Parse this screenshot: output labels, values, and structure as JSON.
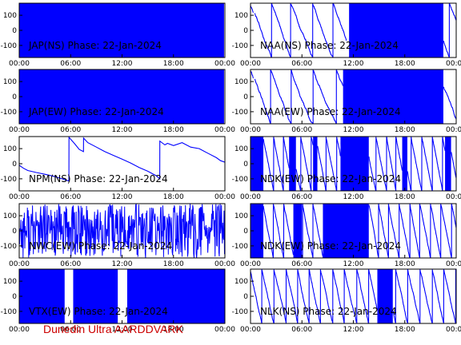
{
  "figure": {
    "footer": "Dunedin Ultra AARDDVARK",
    "footer_color": "#cc0000",
    "trace_color": "#0000ff"
  },
  "chart_data": [
    {
      "type": "line",
      "title": "JAP(NS) Phase: 22-Jan-2024",
      "x_ticks": [
        "00:00",
        "06:00",
        "12:00",
        "18:00",
        "00:00"
      ],
      "y_ticks": [
        "100",
        "0",
        "-100"
      ],
      "ylim": [
        -180,
        180
      ],
      "xlim_hours": [
        0,
        24
      ],
      "style": "fill",
      "segments": [
        [
          0,
          23.9
        ]
      ]
    },
    {
      "type": "line",
      "title": "NAA(NS) Phase: 22-Jan-2024",
      "x_ticks": [
        "00:00",
        "06:00",
        "12:00",
        "18:00",
        "00:00"
      ],
      "y_ticks": [
        "100",
        "0",
        "-100"
      ],
      "ylim": [
        -180,
        180
      ],
      "xlim_hours": [
        0,
        24
      ],
      "style": "wrap",
      "slope_deg_per_hour": -150,
      "line_ranges": [
        [
          0,
          11.5
        ],
        [
          22.5,
          24
        ]
      ],
      "band_ranges": [
        [
          11.5,
          22.5
        ]
      ],
      "gaps": [
        [
          0.35,
          0.5
        ],
        [
          11.2,
          11.6
        ]
      ]
    },
    {
      "type": "line",
      "title": "JAP(EW) Phase: 22-Jan-2024",
      "x_ticks": [
        "00:00",
        "06:00",
        "12:00",
        "18:00",
        "00:00"
      ],
      "y_ticks": [
        "100",
        "0",
        "-100"
      ],
      "ylim": [
        -180,
        180
      ],
      "xlim_hours": [
        0,
        24
      ],
      "style": "fill",
      "segments": [
        [
          0,
          23.9
        ]
      ]
    },
    {
      "type": "line",
      "title": "NAA(EW) Phase: 22-Jan-2024",
      "x_ticks": [
        "00:00",
        "06:00",
        "12:00",
        "18:00",
        "00:00"
      ],
      "y_ticks": [
        "100",
        "0",
        "-100"
      ],
      "ylim": [
        -180,
        180
      ],
      "xlim_hours": [
        0,
        24
      ],
      "style": "wrap",
      "slope_deg_per_hour": -150,
      "line_ranges": [
        [
          0,
          10.8
        ],
        [
          22.5,
          24
        ]
      ],
      "band_ranges": [
        [
          10.8,
          22.5
        ]
      ],
      "gaps": [
        [
          0.35,
          0.5
        ]
      ]
    },
    {
      "type": "line",
      "title": "NPM(NS) Phase: 22-Jan-2024",
      "x_ticks": [
        "00:00",
        "06:00",
        "12:00",
        "18:00",
        "00:00"
      ],
      "y_ticks": [
        "100",
        "0",
        "-100"
      ],
      "ylim": [
        -180,
        180
      ],
      "xlim_hours": [
        0,
        24
      ],
      "style": "series",
      "points": [
        [
          0,
          -10
        ],
        [
          0.5,
          -30
        ],
        [
          1,
          -45
        ],
        [
          2,
          -58
        ],
        [
          3,
          -70
        ],
        [
          4,
          -83
        ],
        [
          5,
          -100
        ],
        [
          5.8,
          -115
        ],
        [
          5.81,
          175
        ],
        [
          6.5,
          130
        ],
        [
          7,
          95
        ],
        [
          7.5,
          80
        ],
        [
          7.51,
          170
        ],
        [
          8,
          140
        ],
        [
          9,
          110
        ],
        [
          10,
          80
        ],
        [
          11,
          55
        ],
        [
          12,
          30
        ],
        [
          13,
          5
        ],
        [
          14,
          -25
        ],
        [
          15,
          -50
        ],
        [
          16,
          -80
        ],
        [
          16.4,
          -100
        ],
        [
          16.41,
          150
        ],
        [
          17,
          125
        ],
        [
          17.3,
          135
        ],
        [
          18,
          120
        ],
        [
          19,
          140
        ],
        [
          20,
          110
        ],
        [
          21,
          100
        ],
        [
          22,
          70
        ],
        [
          23,
          40
        ],
        [
          23.5,
          20
        ],
        [
          24,
          10
        ]
      ]
    },
    {
      "type": "line",
      "title": "NDK(EW) Phase: 22-Jan-2024",
      "x_ticks": [
        "00:00",
        "06:00",
        "12:00",
        "18:00",
        "00:00"
      ],
      "y_ticks": [
        "100",
        "0",
        "-100"
      ],
      "ylim": [
        -180,
        180
      ],
      "xlim_hours": [
        0,
        24
      ],
      "style": "wrap",
      "slope_deg_per_hour": -300,
      "line_ranges": [
        [
          0,
          24
        ]
      ],
      "band_ranges": [
        [
          0,
          1.5
        ],
        [
          4.5,
          5.3
        ],
        [
          7.3,
          7.8
        ],
        [
          10.5,
          13.8
        ],
        [
          17.7,
          18.3
        ],
        [
          22.7,
          23.4
        ]
      ],
      "gaps": []
    },
    {
      "type": "line",
      "title": "NWC(EW) Phase: 22-Jan-2024",
      "x_ticks": [
        "00:00",
        "06:00",
        "12:00",
        "18:00",
        "00:00"
      ],
      "y_ticks": [
        "100",
        "0",
        "-100"
      ],
      "ylim": [
        -180,
        180
      ],
      "xlim_hours": [
        0,
        24
      ],
      "style": "noise",
      "segments": [
        [
          0,
          24
        ]
      ]
    },
    {
      "type": "line",
      "title": "NDK(EW) Phase: 22-Jan-2024",
      "x_ticks": [
        "00:00",
        "06:00",
        "12:00",
        "18:00",
        "00:00"
      ],
      "y_ticks": [
        "100",
        "0",
        "-100"
      ],
      "ylim": [
        -180,
        180
      ],
      "xlim_hours": [
        0,
        24
      ],
      "style": "wrap",
      "slope_deg_per_hour": -300,
      "line_ranges": [
        [
          0,
          24
        ]
      ],
      "band_ranges": [
        [
          0,
          1.5
        ],
        [
          5,
          6
        ],
        [
          8.5,
          13.8
        ]
      ],
      "gaps": []
    },
    {
      "type": "line",
      "title": "VTX(EW) Phase: 22-Jan-2024",
      "x_ticks": [
        "00:00",
        "06:00",
        "12:00",
        "18:00",
        "00:00"
      ],
      "y_ticks": [
        "100",
        "0",
        "-100"
      ],
      "ylim": [
        -180,
        180
      ],
      "xlim_hours": [
        0,
        24
      ],
      "style": "fill",
      "segments": [
        [
          0,
          5.3
        ],
        [
          6.3,
          11.5
        ],
        [
          12.6,
          24
        ]
      ]
    },
    {
      "type": "line",
      "title": "NLK(NS) Phase: 22-Jan-2024",
      "x_ticks": [
        "00:00",
        "06:00",
        "12:00",
        "18:00",
        "00:00"
      ],
      "y_ticks": [
        "100",
        "0",
        "-100"
      ],
      "ylim": [
        -180,
        180
      ],
      "xlim_hours": [
        0,
        24
      ],
      "style": "wrap",
      "slope_deg_per_hour": -260,
      "line_ranges": [
        [
          0,
          24
        ]
      ],
      "band_ranges": [
        [
          14.8,
          16.6
        ]
      ],
      "gaps": []
    }
  ]
}
